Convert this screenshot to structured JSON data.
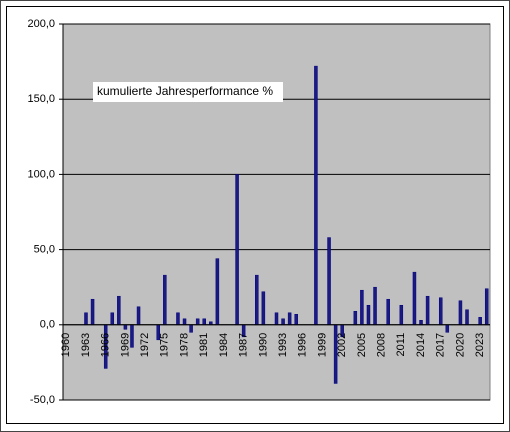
{
  "chart_data": {
    "type": "bar",
    "title": "kumulierte Jahresperformance %",
    "categories": [
      "1960",
      null,
      null,
      "1963",
      null,
      null,
      "1966",
      null,
      null,
      "1969",
      null,
      null,
      "1972",
      null,
      null,
      "1975",
      null,
      null,
      "1978",
      null,
      null,
      "1981",
      null,
      null,
      "1984",
      null,
      null,
      "1987",
      null,
      null,
      "1990",
      null,
      null,
      "1993",
      null,
      null,
      "1996",
      null,
      null,
      "1999",
      null,
      null,
      "2002",
      null,
      null,
      "2005",
      null,
      null,
      "2008",
      null,
      null,
      "2011",
      null,
      null,
      "2014",
      null,
      null,
      "2017",
      null,
      null,
      "2020",
      null,
      null,
      "2023",
      null
    ],
    "values": [
      0,
      0,
      0,
      8,
      17,
      0,
      -29,
      8,
      19,
      -3,
      -15,
      12,
      0,
      0,
      -10,
      33,
      0,
      8,
      4,
      -5,
      4,
      4,
      2,
      44,
      0,
      0,
      100,
      -8,
      0,
      33,
      22,
      0,
      8,
      4,
      8,
      7,
      0,
      0,
      172,
      0,
      58,
      -39,
      -8,
      0,
      9,
      23,
      13,
      25,
      0,
      17,
      0,
      13,
      0,
      35,
      3,
      19,
      0,
      18,
      -5,
      0,
      16,
      10,
      0,
      5,
      24
    ],
    "color": "#1a1a80",
    "ylim": [
      -50,
      200
    ],
    "yticks": [
      {
        "value": -50,
        "label": "-50,0"
      },
      {
        "value": 0,
        "label": "0,0"
      },
      {
        "value": 50,
        "label": "50,0"
      },
      {
        "value": 100,
        "label": "100,0"
      },
      {
        "value": 150,
        "label": "150,0"
      },
      {
        "value": 200,
        "label": "200,0"
      }
    ],
    "grid": true
  }
}
